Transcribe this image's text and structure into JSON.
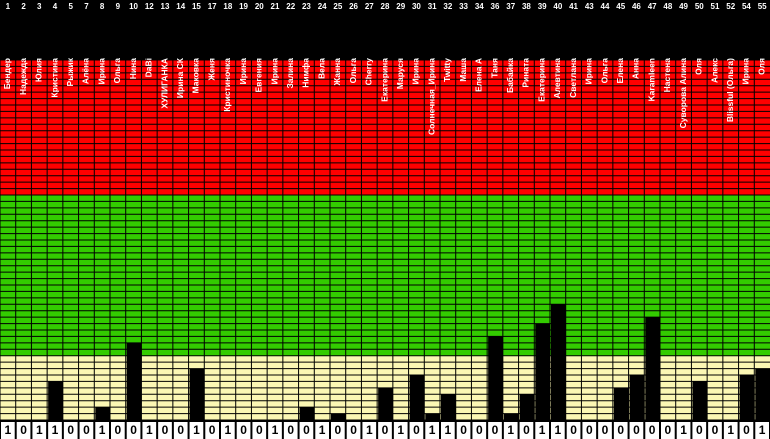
{
  "ylim": [
    0,
    56
  ],
  "bands": [
    {
      "to": 10,
      "color": "#fbf7b4"
    },
    {
      "to": 35,
      "color": "#33cc00"
    },
    {
      "to": 56,
      "color": "#ff0000"
    }
  ],
  "columns": [
    {
      "id": 1,
      "name": "Бендер",
      "level": 0,
      "flag": "1"
    },
    {
      "id": 2,
      "name": "Надежда",
      "level": 0,
      "flag": "0"
    },
    {
      "id": 3,
      "name": "Юлия",
      "level": 0,
      "flag": "1"
    },
    {
      "id": 4,
      "name": "Кристина",
      "level": 6,
      "flag": "1"
    },
    {
      "id": 5,
      "name": "Рыжик",
      "level": 0,
      "flag": "0"
    },
    {
      "id": 7,
      "name": "Алёна",
      "level": 0,
      "flag": "0"
    },
    {
      "id": 8,
      "name": "Ирина",
      "level": 2,
      "flag": "1"
    },
    {
      "id": 9,
      "name": "Ольга",
      "level": 0,
      "flag": "0"
    },
    {
      "id": 10,
      "name": "Нина",
      "level": 12,
      "flag": "0"
    },
    {
      "id": 12,
      "name": "DaBi",
      "level": 0,
      "flag": "1"
    },
    {
      "id": 13,
      "name": "ХУЛИГАНКА",
      "level": 0,
      "flag": "0"
    },
    {
      "id": 14,
      "name": "Ирина СК",
      "level": 0,
      "flag": "0"
    },
    {
      "id": 15,
      "name": "Маковка",
      "level": 8,
      "flag": "1"
    },
    {
      "id": 17,
      "name": "Женя",
      "level": 0,
      "flag": "0"
    },
    {
      "id": 18,
      "name": "Кристиночка",
      "level": 0,
      "flag": "1"
    },
    {
      "id": 19,
      "name": "Ирина",
      "level": 0,
      "flag": "0"
    },
    {
      "id": 20,
      "name": "Евгения",
      "level": 0,
      "flag": "0"
    },
    {
      "id": 21,
      "name": "Ирина",
      "level": 0,
      "flag": "1"
    },
    {
      "id": 22,
      "name": "Залина",
      "level": 0,
      "flag": "0"
    },
    {
      "id": 23,
      "name": "Нимфа",
      "level": 2,
      "flag": "0"
    },
    {
      "id": 24,
      "name": "Вела",
      "level": 0,
      "flag": "1"
    },
    {
      "id": 25,
      "name": "Жанна",
      "level": 1,
      "flag": "0"
    },
    {
      "id": 26,
      "name": "Ольга",
      "level": 0,
      "flag": "0"
    },
    {
      "id": 27,
      "name": "Cherry",
      "level": 0,
      "flag": "1"
    },
    {
      "id": 28,
      "name": "Екатерина",
      "level": 5,
      "flag": "0"
    },
    {
      "id": 29,
      "name": "Маруся",
      "level": 0,
      "flag": "1"
    },
    {
      "id": 30,
      "name": "Ирина",
      "level": 7,
      "flag": "0"
    },
    {
      "id": 31,
      "name": "Солнечная_Ирина",
      "level": 1,
      "flag": "1"
    },
    {
      "id": 32,
      "name": "Twitty",
      "level": 4,
      "flag": "1"
    },
    {
      "id": 33,
      "name": "Маша",
      "level": 0,
      "flag": "0"
    },
    {
      "id": 34,
      "name": "Елена А",
      "level": 0,
      "flag": "0"
    },
    {
      "id": 36,
      "name": "Таня",
      "level": 13,
      "flag": "0"
    },
    {
      "id": 37,
      "name": "Бабайка",
      "level": 1,
      "flag": "1"
    },
    {
      "id": 38,
      "name": "Рината",
      "level": 4,
      "flag": "0"
    },
    {
      "id": 39,
      "name": "Екатерина",
      "level": 15,
      "flag": "1"
    },
    {
      "id": 40,
      "name": "Алевтина",
      "level": 18,
      "flag": "1"
    },
    {
      "id": 41,
      "name": "Светлана",
      "level": 0,
      "flag": "0"
    },
    {
      "id": 43,
      "name": "Ирина",
      "level": 0,
      "flag": "0"
    },
    {
      "id": 44,
      "name": "Ольга",
      "level": 0,
      "flag": "0"
    },
    {
      "id": 45,
      "name": "Елена",
      "level": 5,
      "flag": "0"
    },
    {
      "id": 46,
      "name": "Анна",
      "level": 7,
      "flag": "0"
    },
    {
      "id": 47,
      "name": "Karamleen",
      "level": 16,
      "flag": "0"
    },
    {
      "id": 48,
      "name": "Настена",
      "level": 0,
      "flag": "0"
    },
    {
      "id": 49,
      "name": "Суворова Алина",
      "level": 0,
      "flag": "1"
    },
    {
      "id": 50,
      "name": "Оля",
      "level": 6,
      "flag": "0"
    },
    {
      "id": 51,
      "name": "Алекс",
      "level": 0,
      "flag": "0"
    },
    {
      "id": 52,
      "name": "Blissful (Ольга)",
      "level": 0,
      "flag": "1"
    },
    {
      "id": 54,
      "name": "Ирина",
      "level": 7,
      "flag": "0"
    },
    {
      "id": 55,
      "name": "Оля",
      "level": 8,
      "flag": "1"
    }
  ]
}
